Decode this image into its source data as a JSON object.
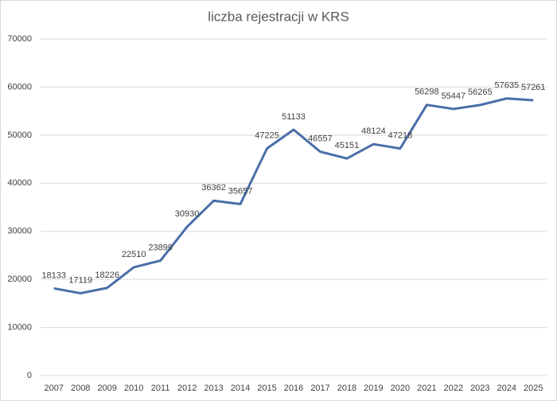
{
  "chart_data": {
    "type": "line",
    "title": "liczba rejestracji w KRS",
    "categories": [
      "2007",
      "2008",
      "2009",
      "2010",
      "2011",
      "2012",
      "2013",
      "2014",
      "2015",
      "2016",
      "2017",
      "2018",
      "2019",
      "2020",
      "2021",
      "2022",
      "2023",
      "2024",
      "2025"
    ],
    "series": [
      {
        "color": "#4a6ea8",
        "values": [
          18133,
          17119,
          18226,
          22510,
          23899,
          30930,
          36362,
          35657,
          47225,
          51133,
          46557,
          45151,
          48124,
          47218,
          56298,
          55447,
          56265,
          57635,
          57261
        ]
      }
    ],
    "ylim": [
      0,
      70000
    ],
    "yticks": [
      0,
      10000,
      20000,
      30000,
      40000,
      50000,
      60000,
      70000
    ],
    "grid": true,
    "data_labels": true
  }
}
